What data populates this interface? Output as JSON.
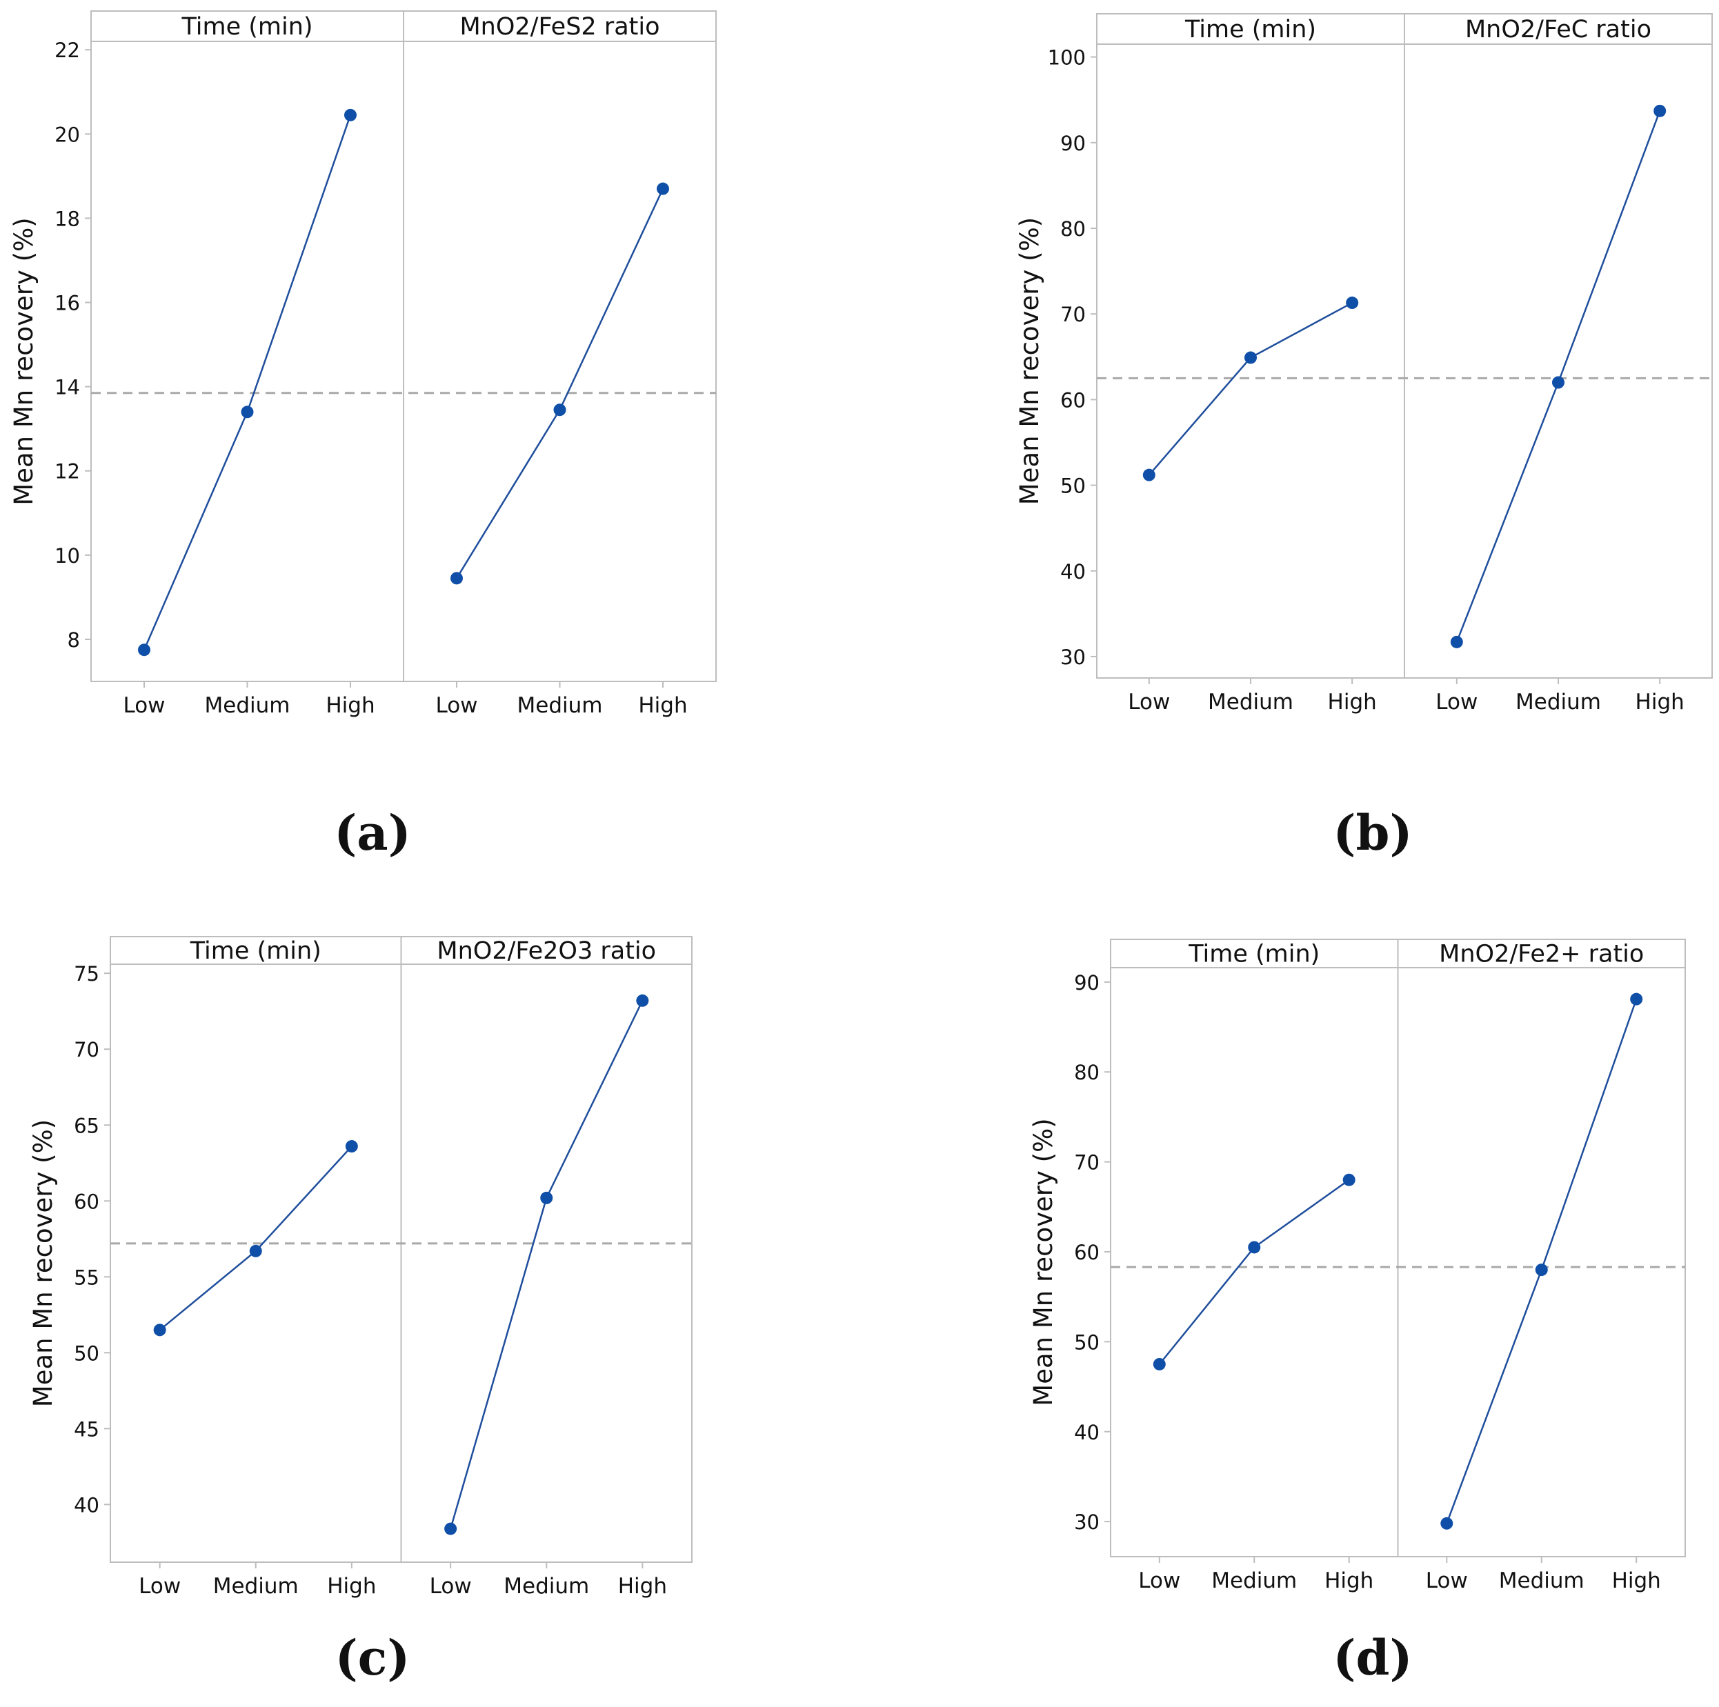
{
  "colors": {
    "series": "#1f4e9c",
    "marker": "#0f4fa8",
    "mean_line": "#a9a9a9",
    "frame": "#bdbdbd",
    "header_fill": "#ffffff",
    "text": "#111111"
  },
  "chart_data": [
    {
      "type": "line",
      "panel_label": "(a)",
      "ylabel": "Mean Mn recovery (%)",
      "ylim": [
        7.0,
        22.2
      ],
      "yticks": [
        8,
        10,
        12,
        14,
        16,
        18,
        20,
        22
      ],
      "overall_mean": 13.85,
      "facets": [
        {
          "title": "Time (min)",
          "categories": [
            "Low",
            "Medium",
            "High"
          ],
          "values": [
            7.75,
            13.4,
            20.45
          ]
        },
        {
          "title": "MnO2/FeS2 ratio",
          "categories": [
            "Low",
            "Medium",
            "High"
          ],
          "values": [
            9.45,
            13.45,
            18.7
          ]
        }
      ]
    },
    {
      "type": "line",
      "panel_label": "(b)",
      "ylabel": "Mean Mn recovery (%)",
      "ylim": [
        27.5,
        101.5
      ],
      "yticks": [
        30,
        40,
        50,
        60,
        70,
        80,
        90,
        100
      ],
      "overall_mean": 62.5,
      "facets": [
        {
          "title": "Time (min)",
          "categories": [
            "Low",
            "Medium",
            "High"
          ],
          "values": [
            51.2,
            64.9,
            71.3
          ]
        },
        {
          "title": "MnO2/FeC ratio",
          "categories": [
            "Low",
            "Medium",
            "High"
          ],
          "values": [
            31.7,
            62.0,
            93.7
          ]
        }
      ]
    },
    {
      "type": "line",
      "panel_label": "(c)",
      "ylabel": "Mean Mn recovery (%)",
      "ylim": [
        36.2,
        75.6
      ],
      "yticks": [
        40,
        45,
        50,
        55,
        60,
        65,
        70,
        75
      ],
      "overall_mean": 57.2,
      "facets": [
        {
          "title": "Time (min)",
          "categories": [
            "Low",
            "Medium",
            "High"
          ],
          "values": [
            51.5,
            56.7,
            63.6
          ]
        },
        {
          "title": "MnO2/Fe2O3 ratio",
          "categories": [
            "Low",
            "Medium",
            "High"
          ],
          "values": [
            38.4,
            60.2,
            73.2
          ]
        }
      ]
    },
    {
      "type": "line",
      "panel_label": "(d)",
      "ylabel": "Mean Mn recovery (%)",
      "ylim": [
        26.1,
        91.6
      ],
      "yticks": [
        30,
        40,
        50,
        60,
        70,
        80,
        90
      ],
      "overall_mean": 58.3,
      "facets": [
        {
          "title": "Time (min)",
          "categories": [
            "Low",
            "Medium",
            "High"
          ],
          "values": [
            47.5,
            60.5,
            68.0
          ]
        },
        {
          "title": "MnO2/Fe2+ ratio",
          "categories": [
            "Low",
            "Medium",
            "High"
          ],
          "values": [
            29.8,
            58.0,
            88.1
          ]
        }
      ]
    }
  ]
}
